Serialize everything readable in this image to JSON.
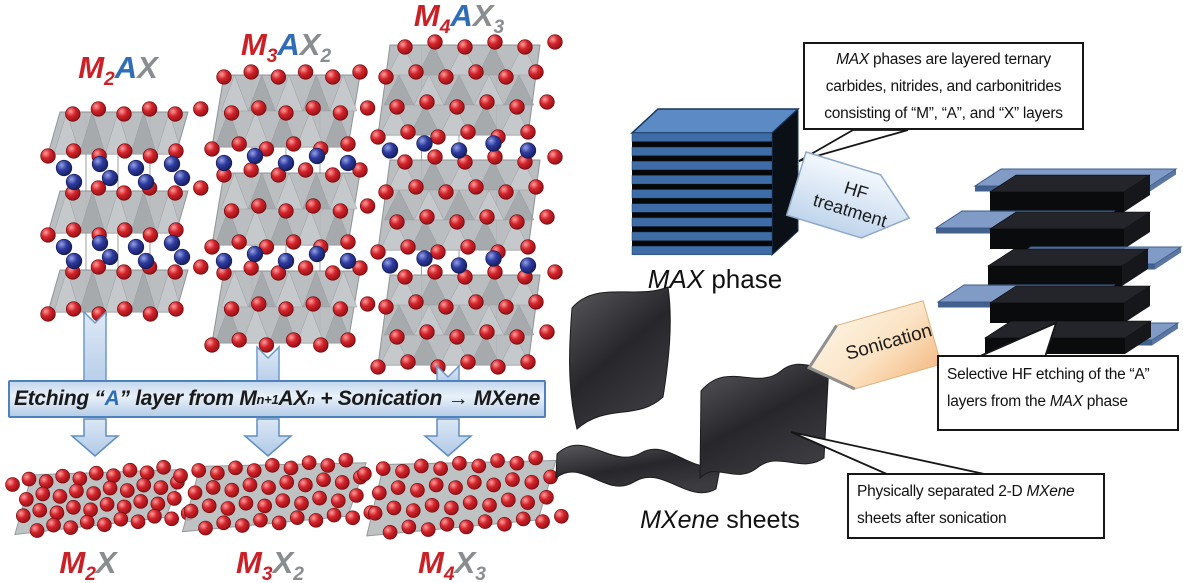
{
  "left": {
    "formulas_top": [
      {
        "m": "M",
        "m_sub": "2",
        "a": "A",
        "x": "X",
        "x_sub": ""
      },
      {
        "m": "M",
        "m_sub": "3",
        "a": "A",
        "x": "X",
        "x_sub": "2"
      },
      {
        "m": "M",
        "m_sub": "4",
        "a": "A",
        "x": "X",
        "x_sub": "3"
      }
    ],
    "banner": {
      "pre": "Etching “",
      "a": "A",
      "mid": "” layer from M",
      "sub1": "n+1",
      "ax": "AX",
      "sub2": "n",
      "plus": " + Sonication ",
      "arrow": "→",
      "result": " MXene"
    },
    "formulas_bottom": [
      {
        "m": "M",
        "m_sub": "2",
        "x": "X",
        "x_sub": ""
      },
      {
        "m": "M",
        "m_sub": "3",
        "x": "X",
        "x_sub": "2"
      },
      {
        "m": "M",
        "m_sub": "4",
        "x": "X",
        "x_sub": "3"
      }
    ]
  },
  "right": {
    "bubble_max": {
      "line1_italic": "MAX",
      "line1_rest": " phases are layered ternary",
      "line2": "carbides, nitrides, and carbonitrides",
      "line3": "consisting of “M”, “A”, and “X” layers"
    },
    "hf_arrow": {
      "line1": "HF",
      "line2": "treatment"
    },
    "max_phase_label": {
      "italic": "MAX",
      "rest": " phase"
    },
    "sonication_label": "Sonication",
    "bubble_etching": {
      "line1": "Selective HF etching of the “A”",
      "line2_pre": "layers from the ",
      "line2_italic": "MAX",
      "line2_post": " phase"
    },
    "mxene_sheets_label": {
      "italic": "MXene",
      "rest": " sheets"
    },
    "bubble_sheets": {
      "line1_pre": "Physically separated 2-D ",
      "line1_italic": "MXene",
      "line2": "sheets after sonication"
    }
  },
  "colors": {
    "m_red": "#cb2026",
    "a_blue": "#2f6db6",
    "x_gray": "#8a8d90",
    "atom_red": "#d2232a",
    "atom_blue": "#3340a3",
    "slab_gray": "#b6b9bb",
    "arrow_blue_fill": "#cfdef2",
    "arrow_blue_border": "#6f99c8",
    "stack_blue": "#4f81bd",
    "stack_black": "#0a0b0d",
    "sonication_peach": "#f6c693"
  }
}
